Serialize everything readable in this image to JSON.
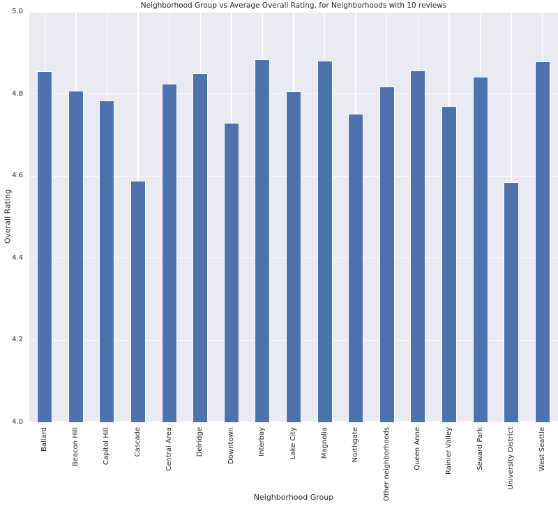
{
  "figure": {
    "title": "Neighborhood Group vs Average Overall Rating, for Neighborhoods with 10 reviews"
  },
  "chart_data": {
    "type": "bar",
    "title": "Neighborhood Group vs Average Overall Rating, for Neighborhoods with 10 reviews",
    "xlabel": "Neighborhood Group",
    "ylabel": "Overall Rating",
    "categories": [
      "Ballard",
      "Beacon Hill",
      "Capitol Hill",
      "Cascade",
      "Central Area",
      "Delridge",
      "Downtown",
      "Interbay",
      "Lake City",
      "Magnolia",
      "Northgate",
      "Other neighborhoods",
      "Queen Anne",
      "Rainier Valley",
      "Seward Park",
      "University District",
      "West Seattle"
    ],
    "values": [
      4.855,
      4.807,
      4.784,
      4.589,
      4.825,
      4.85,
      4.729,
      4.885,
      4.806,
      4.881,
      4.752,
      4.818,
      4.857,
      4.771,
      4.842,
      4.585,
      4.879
    ],
    "ylim": [
      4.0,
      5.0
    ],
    "yticks": [
      4.0,
      4.2,
      4.4,
      4.6,
      4.8,
      5.0
    ],
    "ytick_format_decimals": 1,
    "grid": true,
    "legend": false,
    "bar_color": "#4c72b0",
    "bar_edge_color": "#ffffff",
    "plot_bg_color": "#eaeaf2",
    "grid_color": "#ffffff",
    "text_color": "#262626"
  }
}
